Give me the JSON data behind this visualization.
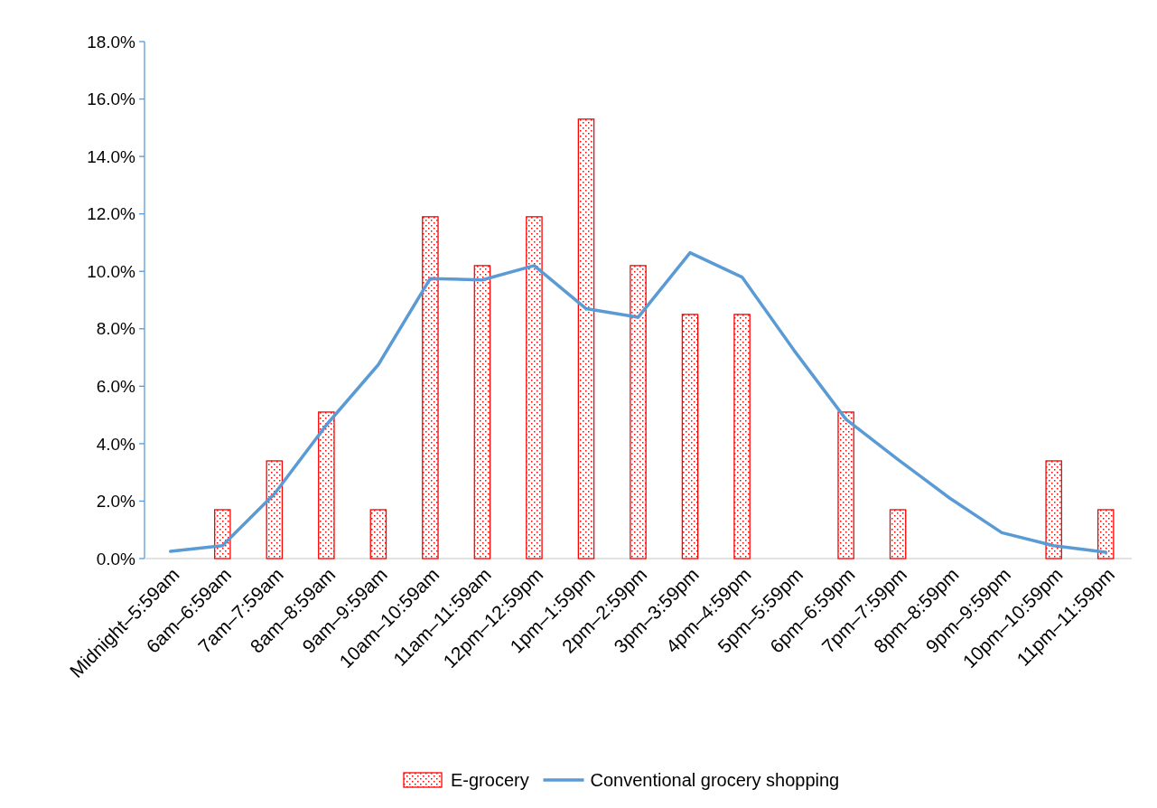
{
  "chart_data": {
    "type": "bar",
    "categories": [
      "Midnight–5:59am",
      "6am–6:59am",
      "7am–7:59am",
      "8am–8:59am",
      "9am–9:59am",
      "10am–10:59am",
      "11am–11:59am",
      "12pm–12:59pm",
      "1pm–1:59pm",
      "2pm–2:59pm",
      "3pm–3:59pm",
      "4pm–4:59pm",
      "5pm–5:59pm",
      "6pm–6:59pm",
      "7pm–7:59pm",
      "8pm–8:59pm",
      "9pm–9:59pm",
      "10pm–10:59pm",
      "11pm–11:59pm"
    ],
    "series": [
      {
        "name": "E-grocery",
        "color": "#ff0000",
        "values": [
          null,
          1.7,
          3.4,
          5.1,
          1.7,
          11.9,
          10.2,
          11.9,
          15.3,
          10.2,
          8.5,
          8.5,
          null,
          5.1,
          1.7,
          null,
          null,
          3.4,
          1.7
        ]
      },
      {
        "name": "Conventional grocery shopping",
        "type": "line",
        "color": "#5b9bd5",
        "values": [
          0.25,
          0.45,
          2.25,
          4.65,
          6.75,
          9.75,
          9.7,
          10.2,
          8.7,
          8.4,
          10.65,
          9.8,
          7.25,
          4.85,
          3.45,
          2.1,
          0.9,
          0.45,
          0.22
        ]
      }
    ],
    "ylim": [
      0,
      18
    ],
    "yticks": [
      {
        "value": 0,
        "label": "0.0%"
      },
      {
        "value": 2,
        "label": "2.0%"
      },
      {
        "value": 4,
        "label": "4.0%"
      },
      {
        "value": 6,
        "label": "6.0%"
      },
      {
        "value": 8,
        "label": "8.0%"
      },
      {
        "value": 10,
        "label": "10.0%"
      },
      {
        "value": 12,
        "label": "12.0%"
      },
      {
        "value": 14,
        "label": "14.0%"
      },
      {
        "value": 16,
        "label": "16.0%"
      },
      {
        "value": 18,
        "label": "18.0%"
      }
    ],
    "grid": false,
    "legend": "bottom",
    "marker": "none",
    "line_style": "solid"
  }
}
